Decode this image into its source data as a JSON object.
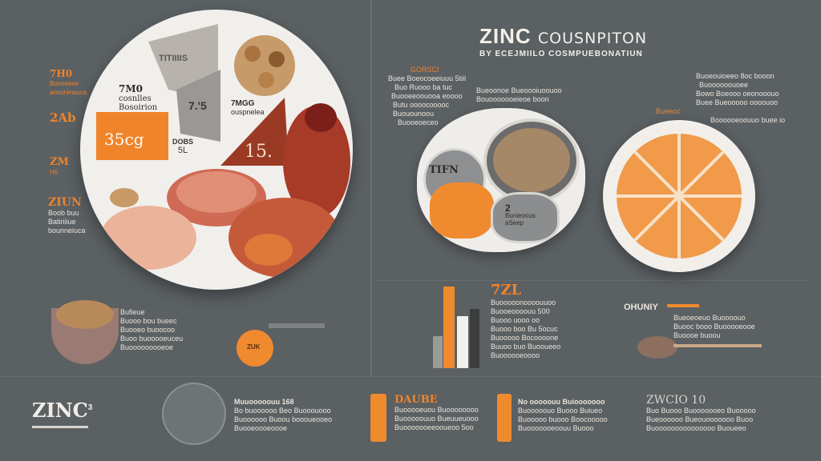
{
  "header": {
    "title_big": "ZINC",
    "title_rest": "COUSNPITON",
    "subtitle": "BY ECEJMIILO COSMPUEBONATIUN"
  },
  "left_labels": [
    {
      "head": "7H0",
      "lines": [
        "Buvoeeee",
        "anourensuca"
      ]
    },
    {
      "head": "2Ab",
      "lines": []
    },
    {
      "head": "ZM",
      "lines": [
        "H5"
      ]
    },
    {
      "head": "ZIUN",
      "lines": [
        "Boob  buu",
        "Batiriiiue",
        "bounneiuca"
      ]
    }
  ],
  "plate_labels": {
    "top_segment": "TITIIIIS",
    "zinc_block": [
      "7M0",
      "cosnlles",
      "Bosoirion"
    ],
    "segment_75": "7.'5",
    "zinc_segment": [
      "7MGG",
      "ouspnelea"
    ],
    "orange_segment": "35cg",
    "small_segment": [
      "DOBS",
      "5L"
    ],
    "meat_segment": "15."
  },
  "middle_notes": {
    "mid_head": "GORSCI",
    "mid_lines": [
      "Buee Boeocoeeiuuu  5tiii",
      "Buo  Ruooo  ba  tuc",
      "Buooeeoouooa eoooo",
      "Butu  oooocooooc",
      "Buouounoou",
      "Buooeoeceo"
    ],
    "callout_lines": [
      "Bueoonoe  Bueoooiuoouoo",
      "Bouooooooeieoe  boon"
    ],
    "blob_label": "TIFN",
    "blob_small": [
      "Bunieoous",
      "2",
      "aSeep"
    ],
    "right_lines": [
      "Buoeouioeeo  8oc  booon",
      "Buoooooouoee",
      "Bowo  Boeooo  oeonooouo",
      "Buee  Bueooooo  oooouoo",
      "Bueeoc",
      "Boooooeoouuo  buee  io"
    ]
  },
  "lower_left": {
    "lines": [
      "Bufieue",
      "Buooo  bou  bueec",
      "Buooeo  buoocoo",
      "Buoo  buooooeuceu",
      "Buooooooooeoe"
    ],
    "ball_label": "ZUK"
  },
  "lower_mid": {
    "head": "7ZL",
    "lines": [
      "Buooooonoooouuoo",
      "Buooeoooouu  500",
      "Buooo  uooo  oo",
      "Buooo  boo  Bu  5ocuc",
      "Buooooo  Bocoooone",
      "Buuoo  buo  Buooueeo",
      "Buoooooeoooo",
      "Buoooooooeoo"
    ]
  },
  "lower_right": {
    "head": "OHUNIY",
    "lines": [
      "Bueoeoeuo  Buoooouo",
      "Buooc  booo  Buooooeooe",
      "Buoooe  buoou"
    ]
  },
  "footer": {
    "logo": "ZINC",
    "logo_sup": "3",
    "col1_head": "Muuooooouu  168",
    "col1_lines": [
      "Bo  buoooooo  Beo  Buooouooo",
      "Buoooooo  Buoou  boooueooeo",
      "Buooeoooeoooe"
    ],
    "col2_head": "DAUBE",
    "col2_lines": [
      "Buooooeuou  Buoooooooo",
      "Buooooouuo  Bueuueuooo",
      "Buooooooeeooueoo  5oo"
    ],
    "col3_head": "No  ooooouu  Buiooooooo",
    "col3_lines": [
      "Buooooouo  Buooo  Buiueo",
      "Buooooo  buooo  Boocooooo",
      "Buooooooeoouu  Buooo"
    ],
    "col4_head": "ZWCIO  10",
    "col4_lines": [
      "Buo  Buooo  Buooooooeo  Buooooo",
      "Bueoooooo  Bueouooooooo  Buoo",
      "Buooooooooooooooo  Buoueeo"
    ]
  },
  "colors": {
    "background": "#5b6063",
    "accent": "#f0842a",
    "text": "#e9e4dc",
    "plate": "#f1efec"
  }
}
